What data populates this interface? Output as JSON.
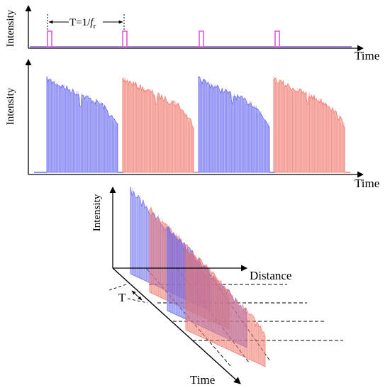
{
  "panel_top": {
    "y_label": "Intensity",
    "x_label": "Time",
    "period_label_prefix": "T=1/",
    "period_label_italic": "f",
    "period_label_sub": "r",
    "pulse_color": "#e46bd8",
    "axis_baseline_color": "#8a5cc9"
  },
  "panel_middle": {
    "y_label": "Intensity",
    "x_label": "Time",
    "colors": {
      "blue": "#6a6cf0",
      "red": "#f07a6e"
    },
    "signals": [
      "blue",
      "red",
      "blue",
      "red"
    ]
  },
  "panel_3d": {
    "y_label": "Intensity",
    "distance_label": "Distance",
    "time_label": "Time",
    "period_label": "T"
  }
}
